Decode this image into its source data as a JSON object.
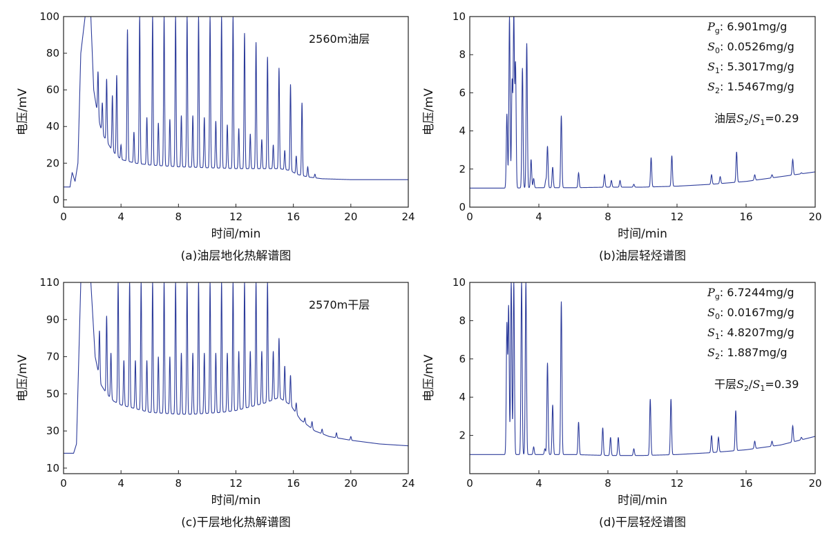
{
  "colors": {
    "trace": "#2b3a9a",
    "axis": "#222222"
  },
  "chart_data": [
    {
      "id": "a",
      "type": "line",
      "caption": "(a)油层地化热解谱图",
      "annotation": "2560m油层",
      "xlabel": "时间/min",
      "ylabel": "电压/mV",
      "xlim": [
        0,
        24
      ],
      "ylim": [
        -4,
        100
      ],
      "xticks": [
        0,
        4,
        8,
        12,
        16,
        20,
        24
      ],
      "yticks": [
        0,
        20,
        40,
        60,
        80,
        100
      ],
      "baseline": [
        [
          0,
          7
        ],
        [
          0.45,
          7
        ],
        [
          0.6,
          15
        ],
        [
          0.8,
          10
        ],
        [
          1.0,
          20
        ],
        [
          1.2,
          80
        ],
        [
          1.5,
          100
        ],
        [
          1.9,
          100
        ],
        [
          2.1,
          60
        ],
        [
          2.4,
          45
        ],
        [
          2.7,
          36
        ],
        [
          3.0,
          32
        ],
        [
          3.3,
          28
        ],
        [
          3.6,
          25
        ],
        [
          4.0,
          22
        ],
        [
          5,
          20
        ],
        [
          6,
          19
        ],
        [
          7,
          18.5
        ],
        [
          8,
          18
        ],
        [
          9,
          17.8
        ],
        [
          10,
          17.5
        ],
        [
          11,
          17.3
        ],
        [
          12,
          17
        ],
        [
          13,
          17
        ],
        [
          14,
          17
        ],
        [
          15,
          17
        ],
        [
          15.8,
          16
        ],
        [
          16.2,
          14
        ],
        [
          17,
          12.5
        ],
        [
          18,
          11.5
        ],
        [
          20,
          11
        ],
        [
          24,
          11
        ]
      ],
      "peaks": [
        [
          2.4,
          70
        ],
        [
          2.7,
          53
        ],
        [
          3.0,
          66
        ],
        [
          3.4,
          57
        ],
        [
          3.7,
          68
        ],
        [
          4.0,
          30
        ],
        [
          4.45,
          93
        ],
        [
          4.9,
          37
        ],
        [
          5.3,
          100
        ],
        [
          5.8,
          45
        ],
        [
          6.2,
          100
        ],
        [
          6.6,
          42
        ],
        [
          7.0,
          100
        ],
        [
          7.4,
          44
        ],
        [
          7.8,
          100
        ],
        [
          8.2,
          46
        ],
        [
          8.6,
          100
        ],
        [
          9.0,
          46
        ],
        [
          9.4,
          100
        ],
        [
          9.8,
          45
        ],
        [
          10.2,
          100
        ],
        [
          10.6,
          43
        ],
        [
          11.0,
          100
        ],
        [
          11.4,
          41
        ],
        [
          11.8,
          100
        ],
        [
          12.2,
          39
        ],
        [
          12.6,
          91
        ],
        [
          13.0,
          36
        ],
        [
          13.4,
          86
        ],
        [
          13.8,
          33
        ],
        [
          14.2,
          78
        ],
        [
          14.6,
          30
        ],
        [
          15.0,
          72
        ],
        [
          15.4,
          27
        ],
        [
          15.8,
          63
        ],
        [
          16.2,
          24
        ],
        [
          16.6,
          53
        ],
        [
          17.0,
          18
        ],
        [
          17.5,
          14
        ]
      ]
    },
    {
      "id": "b",
      "type": "line",
      "caption": "(b)油层轻烃谱图",
      "annotation_lines": [
        "Pg: 6.901mg/g",
        "S0: 0.0526mg/g",
        "S1: 5.3017mg/g",
        "S2: 1.5467mg/g"
      ],
      "ratio_text": "油层S2/S1=0.29",
      "xlabel": "时间/min",
      "ylabel": "电压/mV",
      "xlim": [
        0,
        20
      ],
      "ylim": [
        0,
        10
      ],
      "xticks": [
        0,
        4,
        8,
        12,
        16,
        20
      ],
      "yticks": [
        0,
        2,
        4,
        6,
        8,
        10
      ],
      "baseline": [
        [
          0,
          1.0
        ],
        [
          2,
          1.0
        ],
        [
          4,
          1.02
        ],
        [
          6,
          1.02
        ],
        [
          8,
          1.05
        ],
        [
          10,
          1.05
        ],
        [
          12,
          1.1
        ],
        [
          14,
          1.2
        ],
        [
          16,
          1.35
        ],
        [
          18,
          1.6
        ],
        [
          20,
          1.85
        ]
      ],
      "peaks": [
        [
          2.15,
          4.9
        ],
        [
          2.3,
          10
        ],
        [
          2.45,
          6.6
        ],
        [
          2.55,
          10
        ],
        [
          2.65,
          7.5
        ],
        [
          3.05,
          7.3
        ],
        [
          3.3,
          8.6
        ],
        [
          3.55,
          2.5
        ],
        [
          3.7,
          1.5
        ],
        [
          4.4,
          1.4
        ],
        [
          4.5,
          3.2
        ],
        [
          4.8,
          2.1
        ],
        [
          5.3,
          4.8
        ],
        [
          6.3,
          1.8
        ],
        [
          7.8,
          1.7
        ],
        [
          8.2,
          1.4
        ],
        [
          8.7,
          1.4
        ],
        [
          9.5,
          1.2
        ],
        [
          10.5,
          2.6
        ],
        [
          11.7,
          2.7
        ],
        [
          14.0,
          1.7
        ],
        [
          14.5,
          1.6
        ],
        [
          15.45,
          2.9
        ],
        [
          16.5,
          1.7
        ],
        [
          17.5,
          1.7
        ],
        [
          18.7,
          2.5
        ],
        [
          19.2,
          1.8
        ]
      ]
    },
    {
      "id": "c",
      "type": "line",
      "caption": "(c)干层地化热解谱图",
      "annotation": "2570m干层",
      "xlabel": "时间/min",
      "ylabel": "电压/mV",
      "xlim": [
        0,
        24
      ],
      "ylim": [
        7,
        110
      ],
      "xticks": [
        0,
        4,
        8,
        12,
        16,
        20,
        24
      ],
      "yticks": [
        10,
        30,
        50,
        70,
        90,
        110
      ],
      "baseline": [
        [
          0,
          18
        ],
        [
          0.7,
          18
        ],
        [
          0.9,
          23
        ],
        [
          1.2,
          110
        ],
        [
          1.9,
          110
        ],
        [
          2.2,
          70
        ],
        [
          2.6,
          55
        ],
        [
          3.0,
          50
        ],
        [
          3.5,
          46
        ],
        [
          4,
          44
        ],
        [
          5,
          42
        ],
        [
          6,
          40
        ],
        [
          7,
          39.5
        ],
        [
          8,
          39
        ],
        [
          9,
          39
        ],
        [
          10,
          39.5
        ],
        [
          11,
          40
        ],
        [
          12,
          41
        ],
        [
          13,
          43
        ],
        [
          14,
          45
        ],
        [
          15,
          48
        ],
        [
          15.8,
          44
        ],
        [
          16.5,
          36
        ],
        [
          17.5,
          30
        ],
        [
          18.5,
          27
        ],
        [
          20,
          25
        ],
        [
          22,
          23
        ],
        [
          24,
          22
        ]
      ],
      "peaks": [
        [
          2.5,
          84
        ],
        [
          3.0,
          92
        ],
        [
          3.3,
          72
        ],
        [
          3.8,
          110
        ],
        [
          4.2,
          68
        ],
        [
          4.6,
          110
        ],
        [
          5.0,
          68
        ],
        [
          5.4,
          110
        ],
        [
          5.8,
          68
        ],
        [
          6.2,
          110
        ],
        [
          6.6,
          70
        ],
        [
          7.0,
          110
        ],
        [
          7.4,
          70
        ],
        [
          7.8,
          110
        ],
        [
          8.2,
          72
        ],
        [
          8.6,
          110
        ],
        [
          9.0,
          72
        ],
        [
          9.4,
          110
        ],
        [
          9.8,
          72
        ],
        [
          10.2,
          110
        ],
        [
          10.6,
          72
        ],
        [
          11.0,
          110
        ],
        [
          11.4,
          72
        ],
        [
          11.8,
          110
        ],
        [
          12.2,
          73
        ],
        [
          12.6,
          110
        ],
        [
          13.0,
          73
        ],
        [
          13.4,
          110
        ],
        [
          13.8,
          73
        ],
        [
          14.2,
          110
        ],
        [
          14.6,
          73
        ],
        [
          15.0,
          80
        ],
        [
          15.4,
          65
        ],
        [
          15.8,
          60
        ],
        [
          16.2,
          45
        ],
        [
          16.8,
          37
        ],
        [
          17.3,
          35
        ],
        [
          18,
          31
        ],
        [
          19,
          29
        ],
        [
          20,
          27
        ]
      ]
    },
    {
      "id": "d",
      "type": "line",
      "caption": "(d)干层轻烃谱图",
      "annotation_lines": [
        "Pg: 6.7244mg/g",
        "S0: 0.0167mg/g",
        "S1: 4.8207mg/g",
        "S2: 1.887mg/g"
      ],
      "ratio_text": "干层S2/S1=0.39",
      "xlabel": "时间/min",
      "ylabel": "电压/mV",
      "xlim": [
        0,
        20
      ],
      "ylim": [
        0,
        10
      ],
      "xticks": [
        0,
        4,
        8,
        12,
        16,
        20
      ],
      "yticks": [
        2,
        4,
        6,
        8,
        10
      ],
      "baseline": [
        [
          0,
          1.0
        ],
        [
          2,
          1.0
        ],
        [
          4,
          1.0
        ],
        [
          6,
          1.0
        ],
        [
          8,
          0.95
        ],
        [
          10,
          0.95
        ],
        [
          12,
          1.0
        ],
        [
          14,
          1.1
        ],
        [
          16,
          1.25
        ],
        [
          18,
          1.5
        ],
        [
          20,
          1.95
        ]
      ],
      "peaks": [
        [
          2.15,
          7.8
        ],
        [
          2.25,
          8.7
        ],
        [
          2.4,
          10
        ],
        [
          2.55,
          10
        ],
        [
          3.0,
          10
        ],
        [
          3.25,
          10
        ],
        [
          3.7,
          1.4
        ],
        [
          4.35,
          1.3
        ],
        [
          4.5,
          5.8
        ],
        [
          4.8,
          3.6
        ],
        [
          5.3,
          9.0
        ],
        [
          6.3,
          2.7
        ],
        [
          7.7,
          2.4
        ],
        [
          8.15,
          1.9
        ],
        [
          8.6,
          1.9
        ],
        [
          9.5,
          1.3
        ],
        [
          10.45,
          3.9
        ],
        [
          11.65,
          3.9
        ],
        [
          14.0,
          2.0
        ],
        [
          14.4,
          1.9
        ],
        [
          15.4,
          3.3
        ],
        [
          16.5,
          1.7
        ],
        [
          17.5,
          1.7
        ],
        [
          18.7,
          2.5
        ],
        [
          19.2,
          1.9
        ]
      ]
    }
  ]
}
